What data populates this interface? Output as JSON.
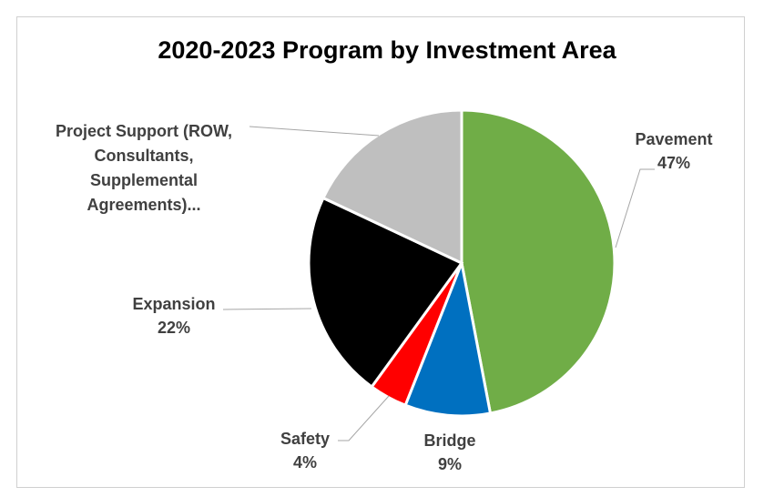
{
  "chart_data": {
    "type": "pie",
    "title": "2020-2023 Program by Investment Area",
    "slices": [
      {
        "name": "Pavement",
        "value": 47,
        "label": "47%",
        "color": "#70ad47"
      },
      {
        "name": "Bridge",
        "value": 9,
        "label": "9%",
        "color": "#0070c0"
      },
      {
        "name": "Safety",
        "value": 4,
        "label": "4%",
        "color": "#ff0000"
      },
      {
        "name": "Expansion",
        "value": 22,
        "label": "22%",
        "color": "#000000"
      },
      {
        "name": "Project Support (ROW, Consultants, Supplemental Agreements)...",
        "value": 18,
        "label": "",
        "color": "#bfbfbf"
      }
    ]
  }
}
